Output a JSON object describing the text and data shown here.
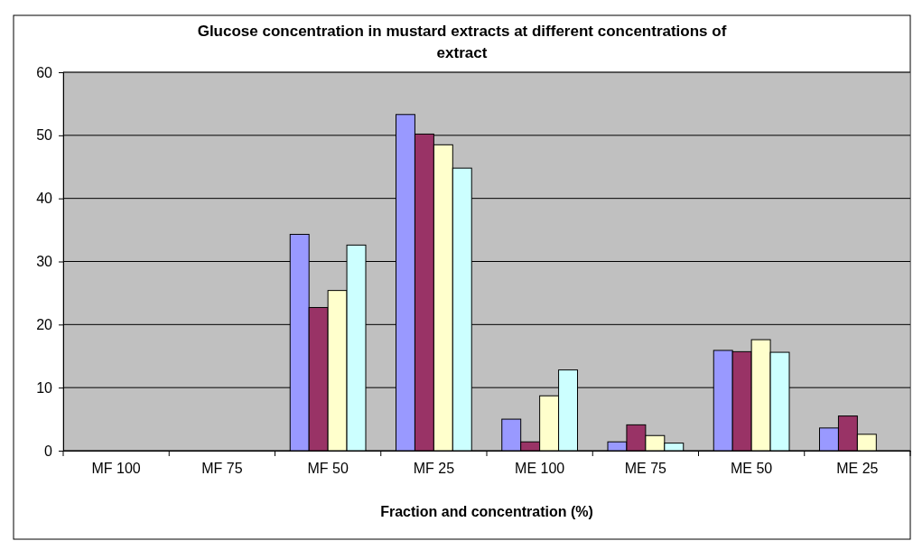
{
  "chart_data": {
    "type": "bar",
    "title": "Glucose concentration in mustard extracts at different concentrations of extract",
    "xlabel": "Fraction and concentration (%)",
    "categories": [
      "MF 100",
      "MF 75",
      "MF 50",
      "MF 25",
      "ME 100",
      "ME 75",
      "ME 50",
      "ME 25"
    ],
    "series": [
      {
        "color": "#9999ff",
        "values": [
          null,
          null,
          34.3,
          53.3,
          5.0,
          1.4,
          15.9,
          3.6
        ]
      },
      {
        "color": "#993366",
        "values": [
          null,
          null,
          22.7,
          50.2,
          1.4,
          4.1,
          15.7,
          5.5
        ]
      },
      {
        "color": "#ffffcc",
        "values": [
          null,
          null,
          25.4,
          48.5,
          8.7,
          2.4,
          17.6,
          2.6
        ]
      },
      {
        "color": "#ccffff",
        "values": [
          null,
          null,
          32.6,
          44.8,
          12.8,
          1.2,
          15.6,
          null
        ]
      }
    ],
    "ylim": [
      0,
      60
    ],
    "yticks": [
      0,
      10,
      20,
      30,
      40,
      50,
      60
    ],
    "grid": "y"
  }
}
